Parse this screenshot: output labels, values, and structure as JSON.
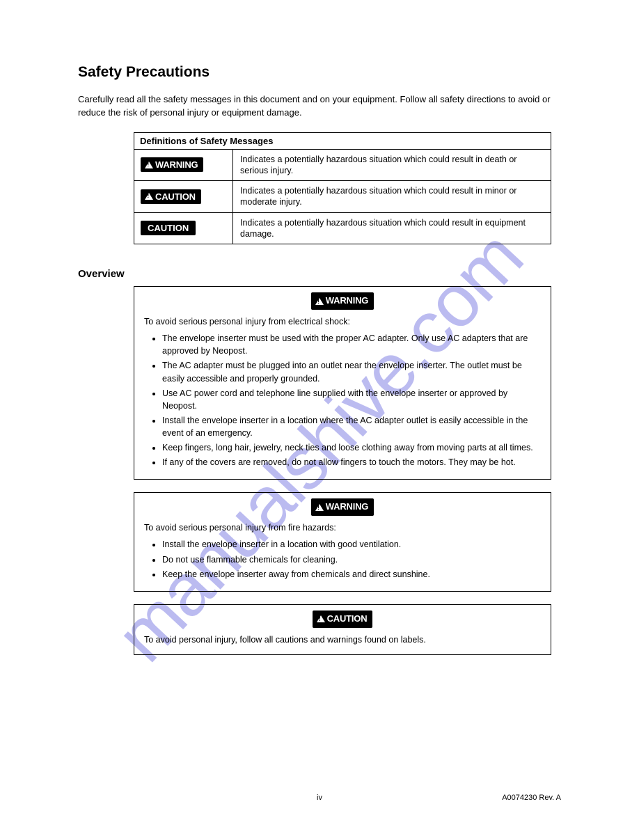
{
  "watermark": "manualshive.com",
  "title": "Safety Precautions",
  "intro": "Carefully read all the safety messages in this document and on your equipment. Follow all safety directions to avoid or reduce the risk of personal injury or equipment damage.",
  "definitions": {
    "header": "Definitions of Safety Messages",
    "rows": [
      {
        "badge": "WARNING",
        "hasIcon": true,
        "text": "Indicates a potentially hazardous situation which could result in death or serious injury."
      },
      {
        "badge": "CAUTION",
        "hasIcon": true,
        "text": "Indicates a potentially hazardous situation which could result in minor or moderate injury."
      },
      {
        "badge": "CAUTION",
        "hasIcon": false,
        "text": "Indicates a potentially hazardous situation which could result in equipment damage."
      }
    ]
  },
  "section1": {
    "title": "Overview",
    "box1": {
      "badge": "WARNING",
      "intro": "To avoid serious personal injury from electrical shock:",
      "items": [
        "The envelope inserter must be used with the proper AC adapter. Only use AC adapters that are approved by Neopost.",
        "The AC adapter must be plugged into an outlet near the envelope inserter. The outlet must be easily accessible and properly grounded.",
        "Use AC power cord and telephone line supplied with the envelope inserter or approved by Neopost.",
        "Install the envelope inserter in a location where the AC adapter outlet is easily accessible in the event of an emergency.",
        "Keep fingers, long hair, jewelry, neck ties and loose clothing away from moving parts at all times.",
        "If any of the covers are removed, do not allow fingers to touch the motors. They may be hot."
      ]
    },
    "box2": {
      "badge": "WARNING",
      "intro": "To avoid serious personal injury from fire hazards:",
      "items": [
        "Install the envelope inserter in a location with good ventilation.",
        "Do not use flammable chemicals for cleaning.",
        "Keep the envelope inserter away from chemicals and direct sunshine."
      ]
    },
    "box3": {
      "badge": "CAUTION",
      "leadin": "To avoid personal injury, follow all cautions and warnings found on labels."
    }
  },
  "footer": {
    "left": "",
    "center": "iv",
    "right": "A0074230 Rev. A"
  }
}
